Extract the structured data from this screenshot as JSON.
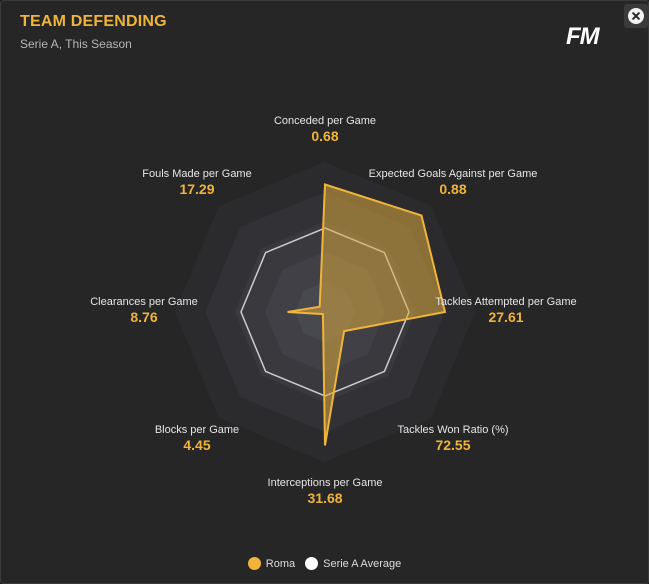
{
  "header": {
    "title": "TEAM DEFENDING",
    "subtitle": "Serie A, This Season",
    "logo_text": "FM"
  },
  "close_icon": "close-icon",
  "colors": {
    "accent": "#f0b43a",
    "roma_fill": "#d9a73e",
    "average_stroke": "#ffffff"
  },
  "chart_data": {
    "type": "radar",
    "axes": [
      {
        "label": "Conceded per Game",
        "value": "0.68"
      },
      {
        "label": "Expected Goals Against per Game",
        "value": "0.88"
      },
      {
        "label": "Tackles Attempted per Game",
        "value": "27.61"
      },
      {
        "label": "Tackles Won Ratio (%)",
        "value": "72.55"
      },
      {
        "label": "Interceptions per Game",
        "value": "31.68"
      },
      {
        "label": "Blocks per Game",
        "value": "4.45"
      },
      {
        "label": "Clearances per Game",
        "value": "8.76"
      },
      {
        "label": "Fouls Made per Game",
        "value": "17.29"
      }
    ],
    "rings": 5,
    "series": [
      {
        "name": "Roma",
        "color": "#d9a73e",
        "values": [
          0.85,
          0.91,
          0.8,
          0.18,
          0.89,
          0.02,
          0.25,
          0.05
        ]
      },
      {
        "name": "Serie A Average",
        "color": "#ffffff",
        "values": [
          0.56,
          0.56,
          0.56,
          0.56,
          0.56,
          0.56,
          0.56,
          0.56
        ]
      }
    ],
    "legend": "bottom"
  }
}
